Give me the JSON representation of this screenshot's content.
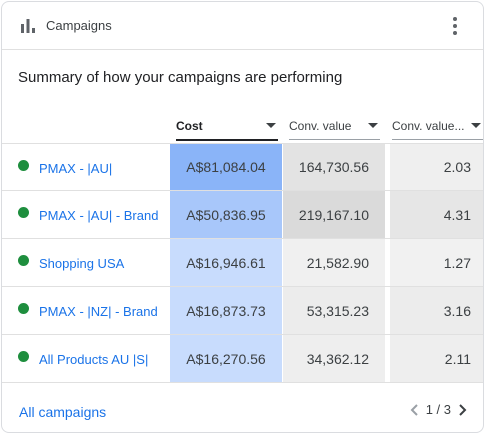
{
  "header": {
    "title": "Campaigns",
    "icon": "bar-chart-icon",
    "menu_icon": "more-vert-icon"
  },
  "subtitle": "Summary of how your campaigns are performing",
  "columns": [
    {
      "label": "Cost",
      "sorted": true
    },
    {
      "label": "Conv. value",
      "sorted": false
    },
    {
      "label": "Conv. value...",
      "sorted": false
    }
  ],
  "rows": [
    {
      "name": "PMAX - |AU|",
      "status": "enabled",
      "cost": "A$81,084.04",
      "conv_value": "164,730.56",
      "conv_value_cost": "2.03"
    },
    {
      "name": "PMAX - |AU| - Brand",
      "status": "enabled",
      "cost": "A$50,836.95",
      "conv_value": "219,167.10",
      "conv_value_cost": "4.31"
    },
    {
      "name": "Shopping USA",
      "status": "enabled",
      "cost": "A$16,946.61",
      "conv_value": "21,582.90",
      "conv_value_cost": "1.27"
    },
    {
      "name": "PMAX - |NZ| - Brand",
      "status": "enabled",
      "cost": "A$16,873.73",
      "conv_value": "53,315.23",
      "conv_value_cost": "3.16"
    },
    {
      "name": "All Products AU |S|",
      "status": "enabled",
      "cost": "A$16,270.56",
      "conv_value": "34,362.12",
      "conv_value_cost": "2.11"
    }
  ],
  "colors": {
    "status_enabled": "#1e8e3e",
    "link": "#1a73e8",
    "cost_heat": [
      "#8ab4f8",
      "#a8c7fa",
      "#c8dcfd",
      "#c8dcfd",
      "#c8dcfd"
    ],
    "conv_heat": [
      "#e3e3e3",
      "#dadada",
      "#f0f0f0",
      "#ececec",
      "#eeeeee"
    ],
    "ratio_heat": [
      "#efefef",
      "#e6e6e6",
      "#f1f1f1",
      "#ececec",
      "#eeeeee"
    ]
  },
  "footer": {
    "link": "All campaigns",
    "page": "1 / 3",
    "prev_icon": "chevron-left-icon",
    "next_icon": "chevron-right-icon"
  }
}
